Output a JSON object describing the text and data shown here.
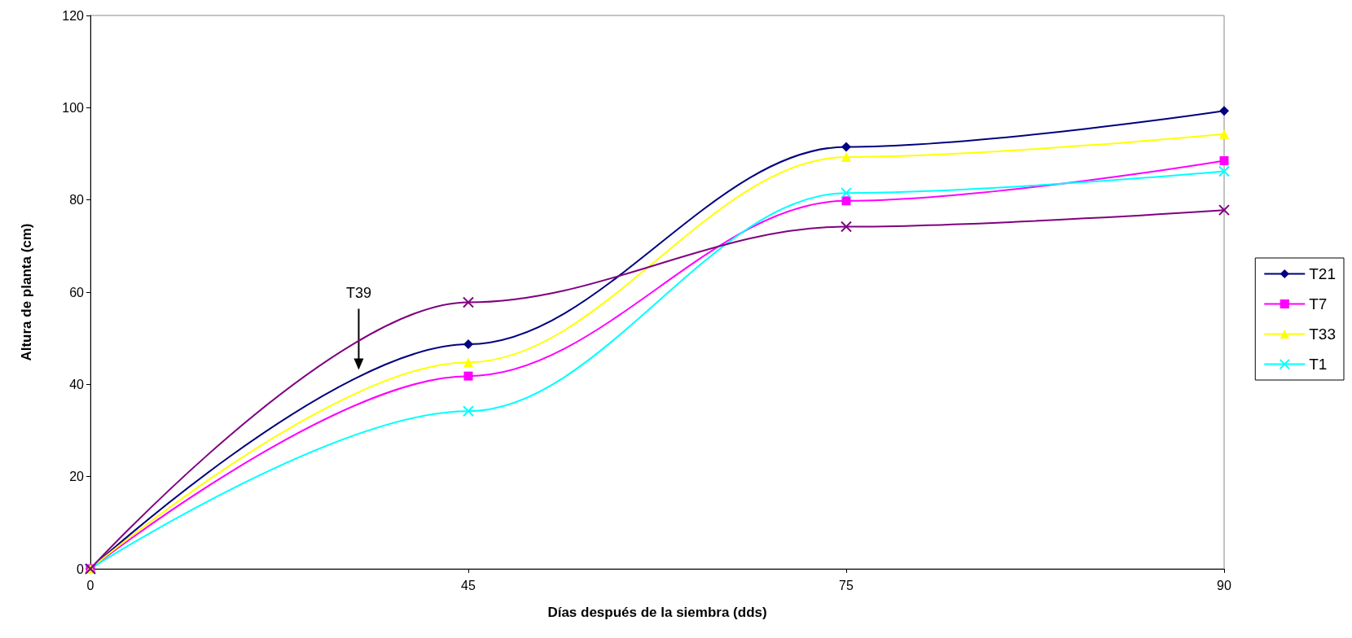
{
  "chart_data": {
    "type": "line",
    "xlabel": "Días después de la siembra (dds)",
    "ylabel": "Altura de planta (cm)",
    "categories": [
      "0",
      "45",
      "75",
      "90"
    ],
    "series": [
      {
        "name": "T21",
        "color": "#000080",
        "marker": "diamond",
        "values": [
          0,
          48.7,
          91.5,
          99.3
        ]
      },
      {
        "name": "T7",
        "color": "#ff00ff",
        "marker": "square",
        "values": [
          0,
          41.8,
          79.8,
          88.5
        ]
      },
      {
        "name": "T33",
        "color": "#ffff00",
        "marker": "triangle",
        "values": [
          0,
          44.8,
          89.3,
          94.3
        ]
      },
      {
        "name": "T1",
        "color": "#00ffff",
        "marker": "cross",
        "values": [
          0,
          34.2,
          81.5,
          86.2
        ]
      },
      {
        "color": "#800080",
        "marker": "cross",
        "values": [
          0,
          57.8,
          74.2,
          77.8
        ]
      }
    ],
    "annotations": [
      "T39"
    ],
    "ylim": [
      0,
      120
    ],
    "yticks": [
      0,
      20,
      40,
      60,
      80,
      100,
      120
    ],
    "grid": false,
    "legend": "right",
    "line_style": "solid"
  }
}
